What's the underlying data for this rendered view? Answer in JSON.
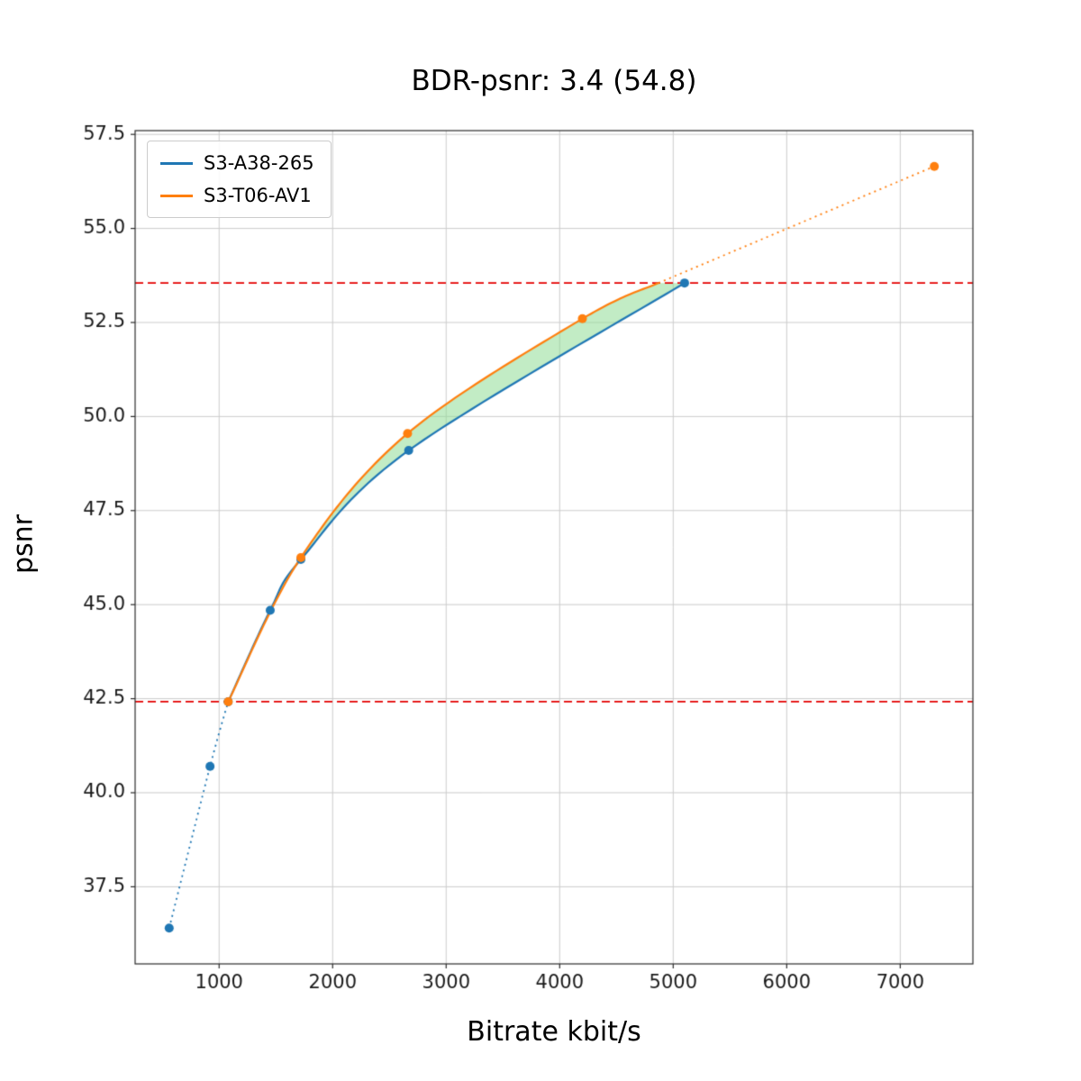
{
  "chart_data": {
    "type": "line",
    "title": "BDR-psnr: 3.4 (54.8)",
    "xlabel": "Bitrate kbit/s",
    "ylabel": "psnr",
    "xlim": [
      260,
      7640
    ],
    "ylim": [
      35.45,
      57.6
    ],
    "grid": true,
    "legend_position": "upper left",
    "xticks": {
      "values": [
        1000,
        2000,
        3000,
        4000,
        5000,
        6000,
        7000
      ],
      "labels": [
        "1000",
        "2000",
        "3000",
        "4000",
        "5000",
        "6000",
        "7000"
      ]
    },
    "yticks": {
      "values": [
        37.5,
        40.0,
        42.5,
        45.0,
        47.5,
        50.0,
        52.5,
        55.0,
        57.5
      ],
      "labels": [
        "37.5",
        "40.0",
        "42.5",
        "45.0",
        "47.5",
        "50.0",
        "52.5",
        "55.0",
        "57.5"
      ]
    },
    "series": [
      {
        "name": "S3-A38-265",
        "color": "#1f77b4",
        "marker_points": [
          [
            560,
            36.4
          ],
          [
            920,
            40.7
          ],
          [
            1080,
            42.42
          ],
          [
            1450,
            44.85
          ],
          [
            1720,
            46.2
          ],
          [
            2670,
            49.1
          ],
          [
            5100,
            53.55
          ]
        ],
        "dotted_points": [
          [
            560,
            36.4
          ],
          [
            920,
            40.7
          ],
          [
            1080,
            42.42
          ]
        ],
        "solid_points": [
          [
            1080,
            42.42
          ],
          [
            1450,
            44.85
          ],
          [
            1720,
            46.2
          ],
          [
            2670,
            49.1
          ],
          [
            5100,
            53.55
          ]
        ]
      },
      {
        "name": "S3-T06-AV1",
        "color": "#ff7f0e",
        "marker_points": [
          [
            1080,
            42.42
          ],
          [
            1720,
            46.25
          ],
          [
            2660,
            49.55
          ],
          [
            4200,
            52.6
          ],
          [
            7300,
            56.65
          ]
        ],
        "solid_points": [
          [
            1080,
            42.42
          ],
          [
            1720,
            46.25
          ],
          [
            2660,
            49.55
          ],
          [
            4200,
            52.6
          ],
          [
            4870,
            53.55
          ]
        ],
        "dotted_points": [
          [
            4870,
            53.55
          ],
          [
            7300,
            56.65
          ]
        ]
      }
    ],
    "hlines": [
      {
        "y": 42.42,
        "color": "#e50000",
        "style": "dashed"
      },
      {
        "y": 53.55,
        "color": "#e50000",
        "style": "dashed"
      }
    ],
    "fill_between": {
      "between": [
        "S3-A38-265",
        "S3-T06-AV1"
      ],
      "x_range": [
        1080,
        5100
      ],
      "color": "rgba(144, 220, 150, 0.55)"
    },
    "colors": {
      "grid": "#cccccc",
      "spine": "#2b2b2b",
      "tick_text": "#1a1a1a"
    }
  }
}
